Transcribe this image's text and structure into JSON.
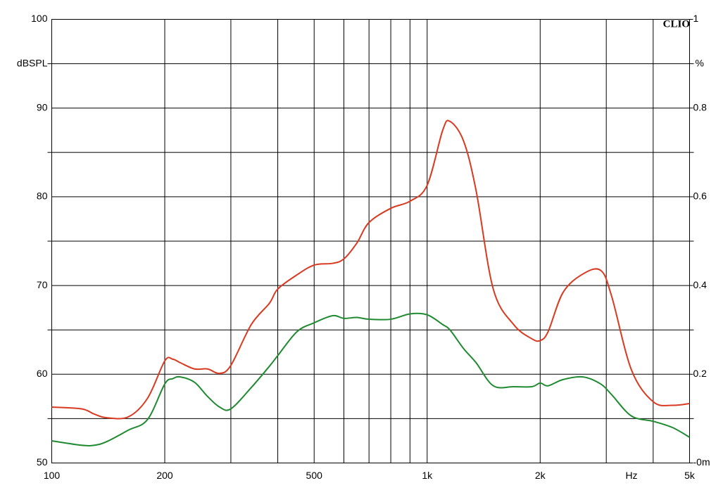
{
  "chart_data": {
    "type": "line",
    "brand": "CLIO",
    "ylabel": "dBSPL",
    "y2label": "%",
    "xunit": "Hz",
    "xscale": "log",
    "x": [
      100,
      120,
      130,
      140,
      160,
      180,
      200,
      210,
      220,
      240,
      260,
      280,
      300,
      340,
      380,
      400,
      450,
      500,
      560,
      600,
      650,
      700,
      800,
      900,
      1000,
      1100,
      1150,
      1250,
      1350,
      1500,
      1700,
      1900,
      2000,
      2100,
      2300,
      2600,
      2900,
      3100,
      3500,
      4000,
      4500,
      5000
    ],
    "series": [
      {
        "color": "#d8391f",
        "values": [
          56.3,
          56.1,
          55.5,
          55.1,
          55.2,
          57.3,
          61.5,
          61.7,
          61.3,
          60.6,
          60.6,
          60.1,
          61,
          65.6,
          68,
          69.6,
          71.2,
          72.3,
          72.5,
          73,
          74.8,
          77.1,
          78.7,
          79.5,
          81.3,
          87.5,
          88.5,
          86.3,
          80.7,
          69.6,
          65.6,
          64,
          63.8,
          64.8,
          69.2,
          71.3,
          71.7,
          68.8,
          60.5,
          56.9,
          56.5,
          56.7
        ]
      },
      {
        "color": "#1f8a30",
        "values": [
          52.5,
          52,
          52,
          52.4,
          53.7,
          54.9,
          58.9,
          59.5,
          59.7,
          59.1,
          57.5,
          56.3,
          56.1,
          58.5,
          60.9,
          62.1,
          64.8,
          65.8,
          66.6,
          66.3,
          66.4,
          66.2,
          66.2,
          66.8,
          66.7,
          65.6,
          65,
          62.9,
          61.3,
          58.7,
          58.6,
          58.6,
          59,
          58.7,
          59.4,
          59.7,
          58.9,
          57.7,
          55.3,
          54.7,
          54,
          52.9
        ]
      }
    ],
    "xlim": [
      100,
      5000
    ],
    "xticks": [
      100,
      200,
      500,
      {
        "value": 1000,
        "label": "1k"
      },
      {
        "value": 2000,
        "label": "2k"
      },
      {
        "value": 5000,
        "label": "5k"
      }
    ],
    "xminor": [
      300,
      400,
      600,
      700,
      800,
      900,
      3000,
      4000
    ],
    "ylim": [
      50,
      100
    ],
    "yticks": [
      50,
      60,
      70,
      80,
      90,
      100
    ],
    "yminor": [
      55,
      65,
      75,
      85,
      95
    ],
    "y2lim": [
      0,
      1
    ],
    "y2ticks": [
      {
        "value": 0,
        "label": "-0m"
      },
      0.2,
      0.4,
      0.6,
      0.8,
      1
    ],
    "grid": true
  }
}
